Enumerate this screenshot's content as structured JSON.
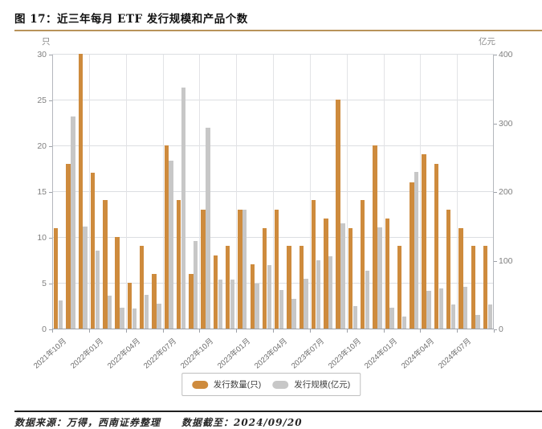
{
  "title": "图 17：近三年每月 ETF 发行规模和产品个数",
  "footer": {
    "source": "数据来源：万得，西南证券整理",
    "cutoff": "数据截至：2024/09/20"
  },
  "legend": {
    "items": [
      {
        "label": "发行数量(只)",
        "color": "#ce8b3d"
      },
      {
        "label": "发行规模(亿元)",
        "color": "#c7c7c7"
      }
    ]
  },
  "colors": {
    "bar_count": "#ce8b3d",
    "bar_scale": "#c7c7c7",
    "title_rule": "#b8935a",
    "footer_rule": "#1f1f1f",
    "gridline": "#dcdee2",
    "axis": "#9da1a8",
    "tick_label": "#7f7f7f"
  },
  "chart_data": {
    "type": "bar",
    "title": "图 17：近三年每月 ETF 发行规模和产品个数",
    "categories": [
      "2021年10月",
      "2021年11月",
      "2021年12月",
      "2022年01月",
      "2022年02月",
      "2022年03月",
      "2022年04月",
      "2022年05月",
      "2022年06月",
      "2022年07月",
      "2022年08月",
      "2022年09月",
      "2022年10月",
      "2022年11月",
      "2022年12月",
      "2023年01月",
      "2023年02月",
      "2023年03月",
      "2023年04月",
      "2023年05月",
      "2023年06月",
      "2023年07月",
      "2023年08月",
      "2023年09月",
      "2023年10月",
      "2023年11月",
      "2023年12月",
      "2024年01月",
      "2024年02月",
      "2024年03月",
      "2024年04月",
      "2024年05月",
      "2024年06月",
      "2024年07月",
      "2024年08月",
      "2024年09月"
    ],
    "series": [
      {
        "name": "发行数量(只)",
        "axis": "left",
        "color": "#ce8b3d",
        "values": [
          11,
          18,
          30,
          17,
          14,
          10,
          5,
          9,
          6,
          20,
          14,
          6,
          13,
          8,
          9,
          13,
          7,
          11,
          13,
          9,
          9,
          14,
          12,
          25,
          11,
          14,
          20,
          12,
          9,
          16,
          19,
          18,
          13,
          11,
          9,
          9
        ]
      },
      {
        "name": "发行规模(亿元)",
        "axis": "right",
        "color": "#c7c7c7",
        "values": [
          41,
          309,
          149,
          113,
          48,
          31,
          29,
          49,
          36,
          244,
          351,
          127,
          293,
          71,
          71,
          173,
          65,
          92,
          56,
          43,
          73,
          99,
          105,
          153,
          33,
          84,
          147,
          31,
          17,
          228,
          55,
          59,
          35,
          61,
          20,
          35
        ]
      }
    ],
    "left_axis": {
      "unit": "只",
      "min": 0,
      "max": 30,
      "step": 5,
      "ticks": [
        0,
        5,
        10,
        15,
        20,
        25,
        30
      ]
    },
    "right_axis": {
      "unit": "亿元",
      "min": 0,
      "max": 400,
      "step": 100,
      "ticks": [
        0,
        100,
        200,
        300,
        400
      ]
    },
    "x_tick_labels": [
      "2021年10月",
      "2022年01月",
      "2022年04月",
      "2022年07月",
      "2022年10月",
      "2023年01月",
      "2023年04月",
      "2023年07月",
      "2023年10月",
      "2024年01月",
      "2024年04月",
      "2024年07月"
    ],
    "x_label_every": 3,
    "grid": true,
    "legend_position": "bottom"
  }
}
